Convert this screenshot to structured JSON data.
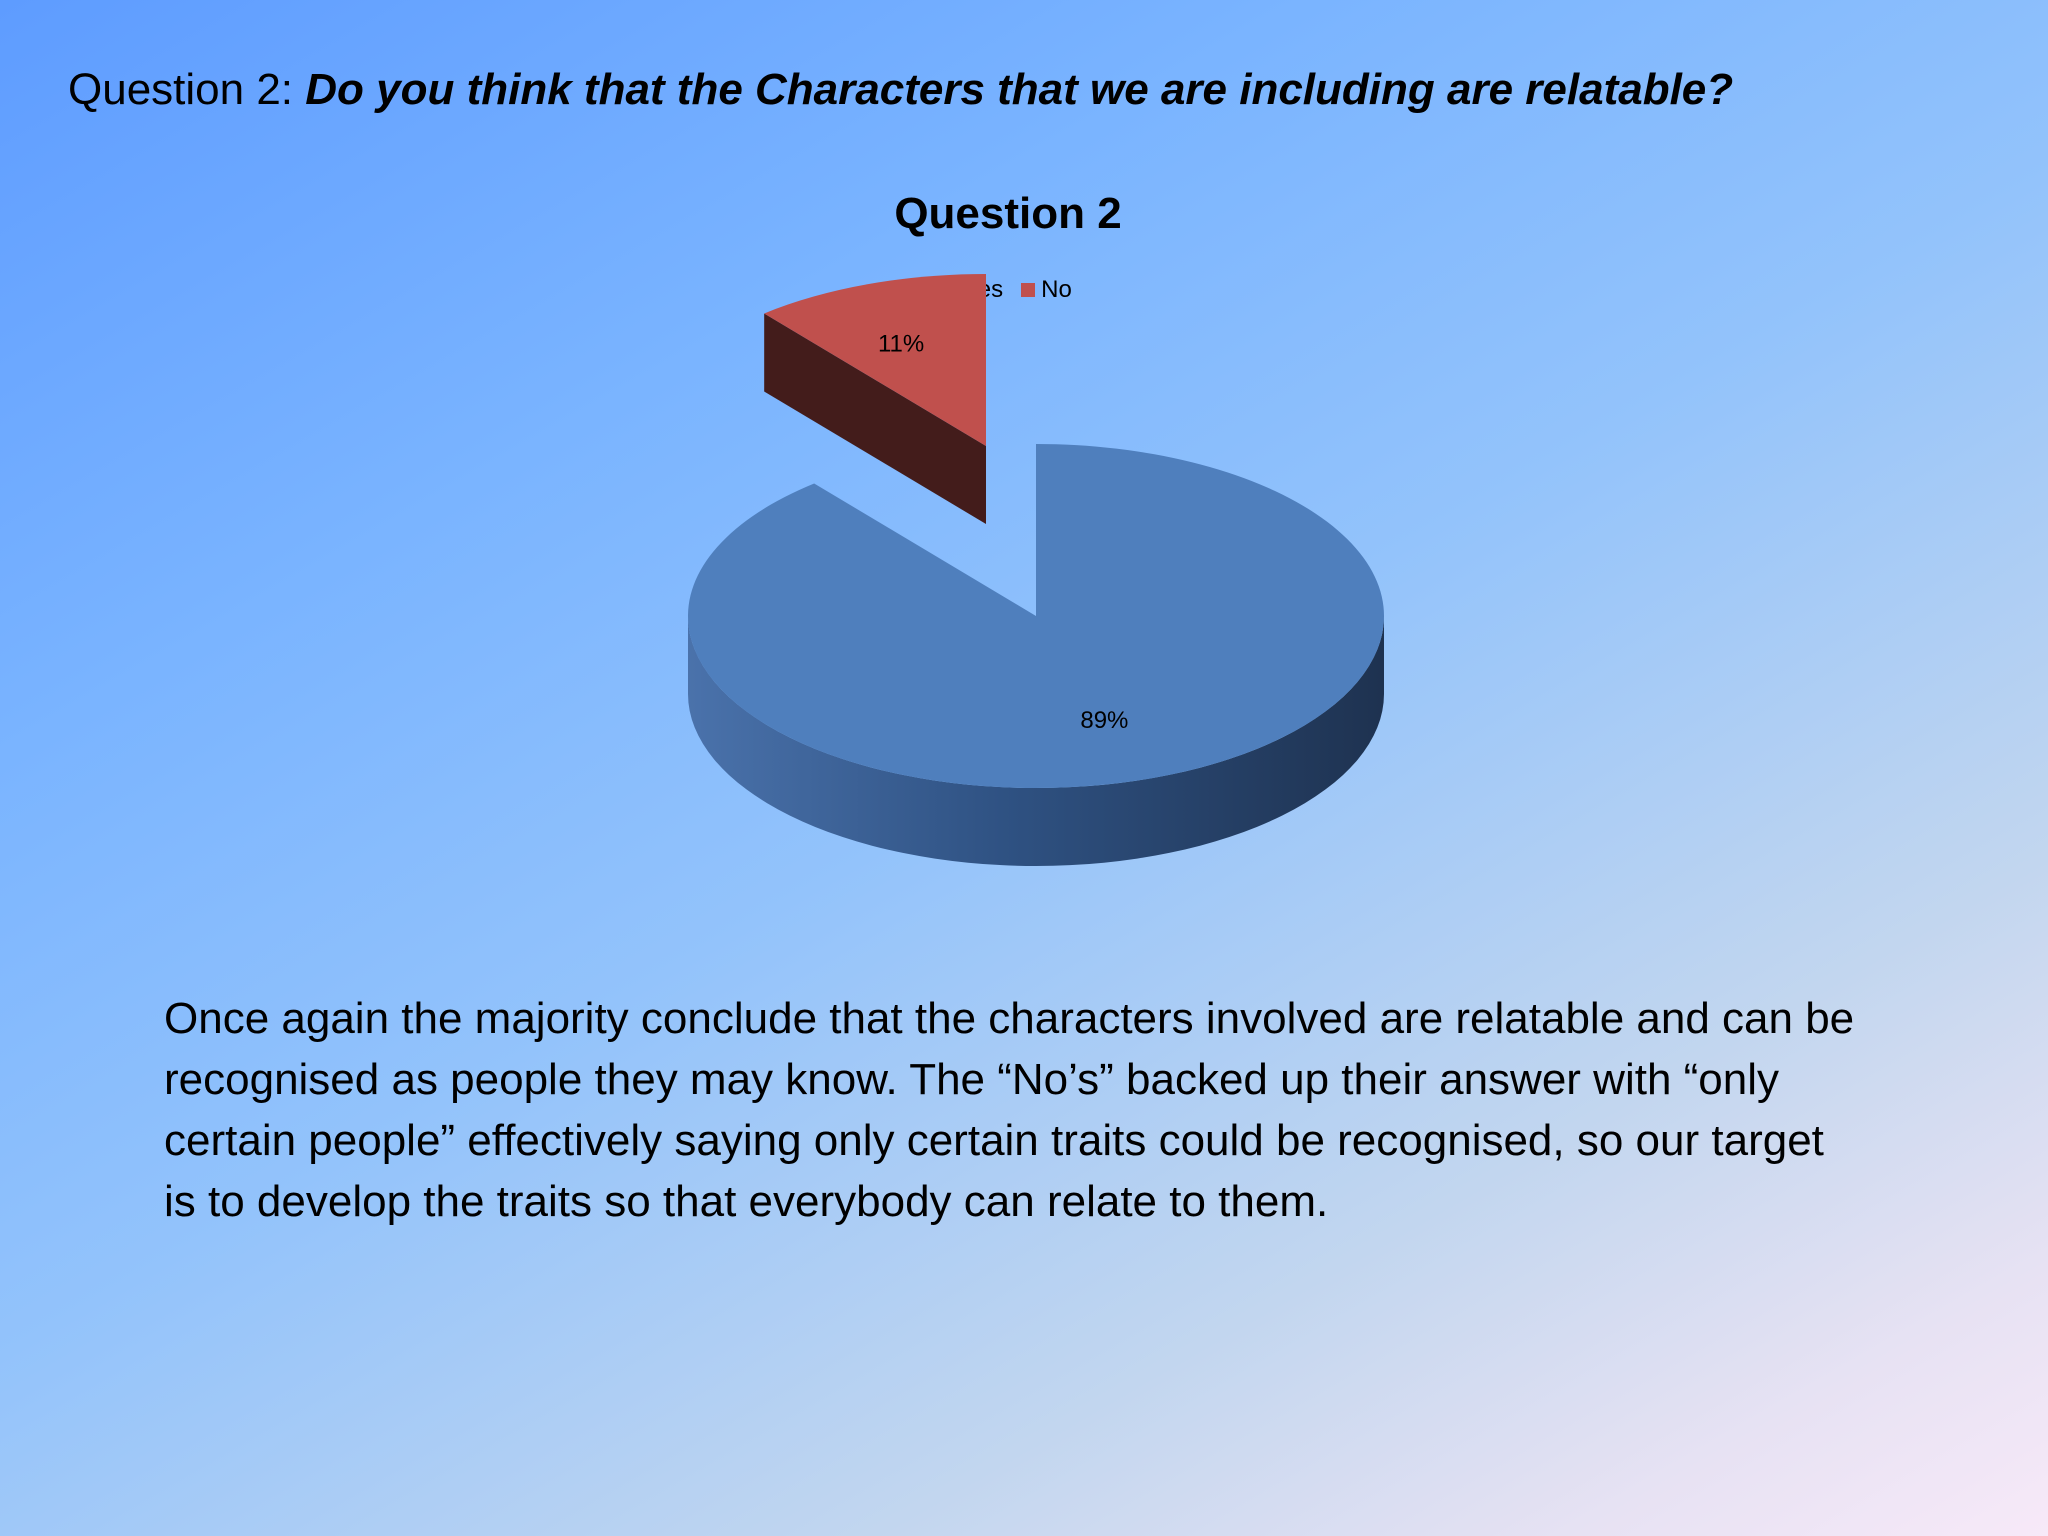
{
  "slide": {
    "heading_prefix": "Question 2:",
    "heading_question": "Do you think that the Characters that we are including are relatable?",
    "body_text": "Once again the majority conclude that the characters involved are relatable and can be recognised as people they may know. The “No’s” backed up their answer with “only certain people” effectively saying only certain traits could be recognised, so our target is to develop the traits so that everybody can relate to them."
  },
  "chart_data": {
    "type": "pie",
    "title": "Question 2",
    "categories": [
      "Yes",
      "No"
    ],
    "values": [
      89,
      11
    ],
    "data_labels": [
      "89%",
      "11%"
    ],
    "colors": [
      "#4f7fbd",
      "#c0504d"
    ],
    "legend_position": "top",
    "style": "3d-exploded"
  }
}
